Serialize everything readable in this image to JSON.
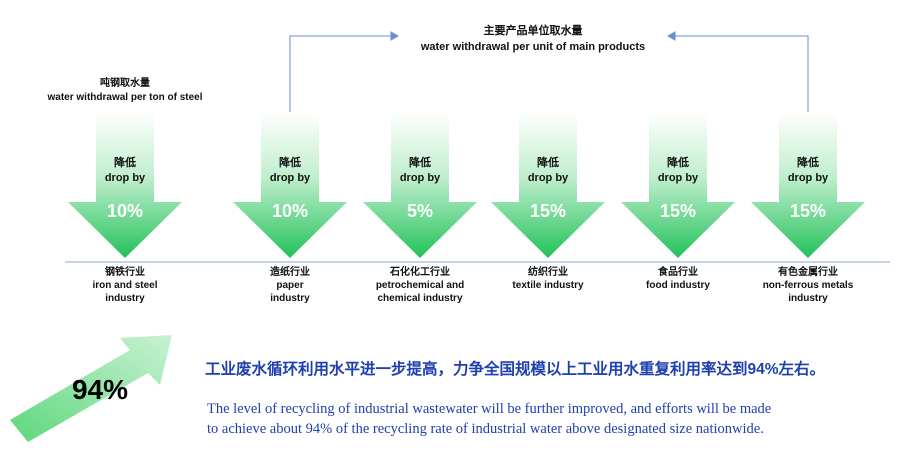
{
  "header": {
    "zh": "主要产品单位取水量",
    "en": "water withdrawal per unit of main products"
  },
  "steel_label": {
    "zh": "吨钢取水量",
    "en": "water withdrawal per ton of steel"
  },
  "arrows": [
    {
      "drop_zh": "降低",
      "drop_en": "drop by",
      "value": "10%",
      "industry_zh": "钢铁行业",
      "industry_en": [
        "iron and steel",
        "industry"
      ]
    },
    {
      "drop_zh": "降低",
      "drop_en": "drop by",
      "value": "10%",
      "industry_zh": "造纸行业",
      "industry_en": [
        "paper",
        "industry"
      ]
    },
    {
      "drop_zh": "降低",
      "drop_en": "drop by",
      "value": "5%",
      "industry_zh": "石化化工行业",
      "industry_en": [
        "petrochemical and",
        "chemical industry"
      ]
    },
    {
      "drop_zh": "降低",
      "drop_en": "drop by",
      "value": "15%",
      "industry_zh": "纺织行业",
      "industry_en": [
        "textile industry"
      ]
    },
    {
      "drop_zh": "降低",
      "drop_en": "drop by",
      "value": "15%",
      "industry_zh": "食品行业",
      "industry_en": [
        "food industry"
      ]
    },
    {
      "drop_zh": "降低",
      "drop_en": "drop by",
      "value": "15%",
      "industry_zh": "有色金属行业",
      "industry_en": [
        "non-ferrous metals",
        "industry"
      ]
    }
  ],
  "footer": {
    "badge": "94%",
    "zh": "工业废水循环利用水平进一步提高，力争全国规模以上工业用水重复利用率达到94%左右。",
    "en": [
      "The level of recycling of industrial wastewater will be further improved, and efforts will be made",
      "to achieve about 94% of the recycling rate of industrial water above designated size nationwide."
    ]
  }
}
